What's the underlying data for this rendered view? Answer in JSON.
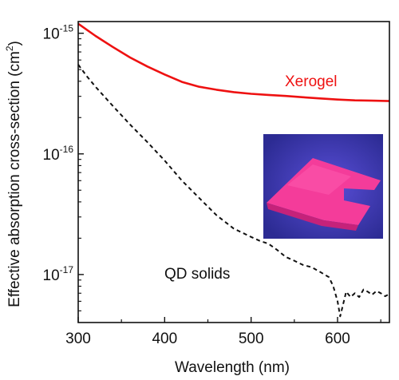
{
  "chart_data": {
    "type": "line",
    "xlabel": "Wavelength (nm)",
    "ylabel": "Effective absorption cross-section (cm²)",
    "ylabel_main": "Effective absorption cross-section (cm",
    "ylabel_sup": "2",
    "ylabel_tail": ")",
    "xlim": [
      300,
      660
    ],
    "ylim": [
      4e-18,
      1.25e-15
    ],
    "yscale": "log",
    "grid": false,
    "x_ticks": [
      {
        "value": 300,
        "label": "300"
      },
      {
        "value": 400,
        "label": "400"
      },
      {
        "value": 500,
        "label": "500"
      },
      {
        "value": 600,
        "label": "600"
      }
    ],
    "y_ticks": [
      {
        "value": 1e-17,
        "base": "10",
        "exp": "-17"
      },
      {
        "value": 1e-16,
        "base": "10",
        "exp": "-16"
      },
      {
        "value": 1e-15,
        "base": "10",
        "exp": "-15"
      }
    ],
    "series": [
      {
        "name": "Xerogel",
        "color": "#ee1111",
        "dash": "solid",
        "x": [
          300,
          320,
          340,
          360,
          380,
          400,
          420,
          440,
          460,
          480,
          500,
          520,
          540,
          560,
          580,
          600,
          620,
          640,
          660
        ],
        "y": [
          1.2e-15,
          9.5e-16,
          7.7e-16,
          6.3e-16,
          5.3e-16,
          4.55e-16,
          3.95e-16,
          3.6e-16,
          3.4e-16,
          3.25e-16,
          3.15e-16,
          3.08e-16,
          3.02e-16,
          2.95e-16,
          2.88e-16,
          2.82e-16,
          2.78e-16,
          2.76e-16,
          2.74e-16
        ]
      },
      {
        "name": "QD solids",
        "color": "#111111",
        "dash": "dashed",
        "x": [
          300,
          310,
          320,
          340,
          360,
          380,
          400,
          420,
          440,
          460,
          480,
          500,
          510,
          520,
          530,
          540,
          550,
          560,
          570,
          580,
          590,
          595,
          600,
          603,
          606,
          610,
          615,
          620,
          625,
          630,
          635,
          640,
          645,
          650,
          655,
          660
        ],
        "y": [
          5.5e-16,
          4.4e-16,
          3.6e-16,
          2.5e-16,
          1.75e-16,
          1.25e-16,
          8.8e-17,
          6e-17,
          4.3e-17,
          3.1e-17,
          2.4e-17,
          2.05e-17,
          1.9e-17,
          1.8e-17,
          1.6e-17,
          1.4e-17,
          1.3e-17,
          1.2e-17,
          1.15e-17,
          1.05e-17,
          9.5e-18,
          8e-18,
          6e-18,
          4.5e-18,
          5.5e-18,
          7.2e-18,
          6.5e-18,
          7e-18,
          6.5e-18,
          7.5e-18,
          7.2e-18,
          6.8e-18,
          7.3e-18,
          7e-18,
          6.6e-18,
          6.9e-18
        ]
      }
    ],
    "annotations": [
      "Xerogel",
      "QD solids"
    ]
  },
  "inset_photo": {
    "colors": {
      "background": "#2c2b93",
      "slab": "#f43c9a",
      "slab_highlight": "#ff5fb4",
      "slab_edge": "#c5227a",
      "glow": "#5a4fd8"
    }
  }
}
